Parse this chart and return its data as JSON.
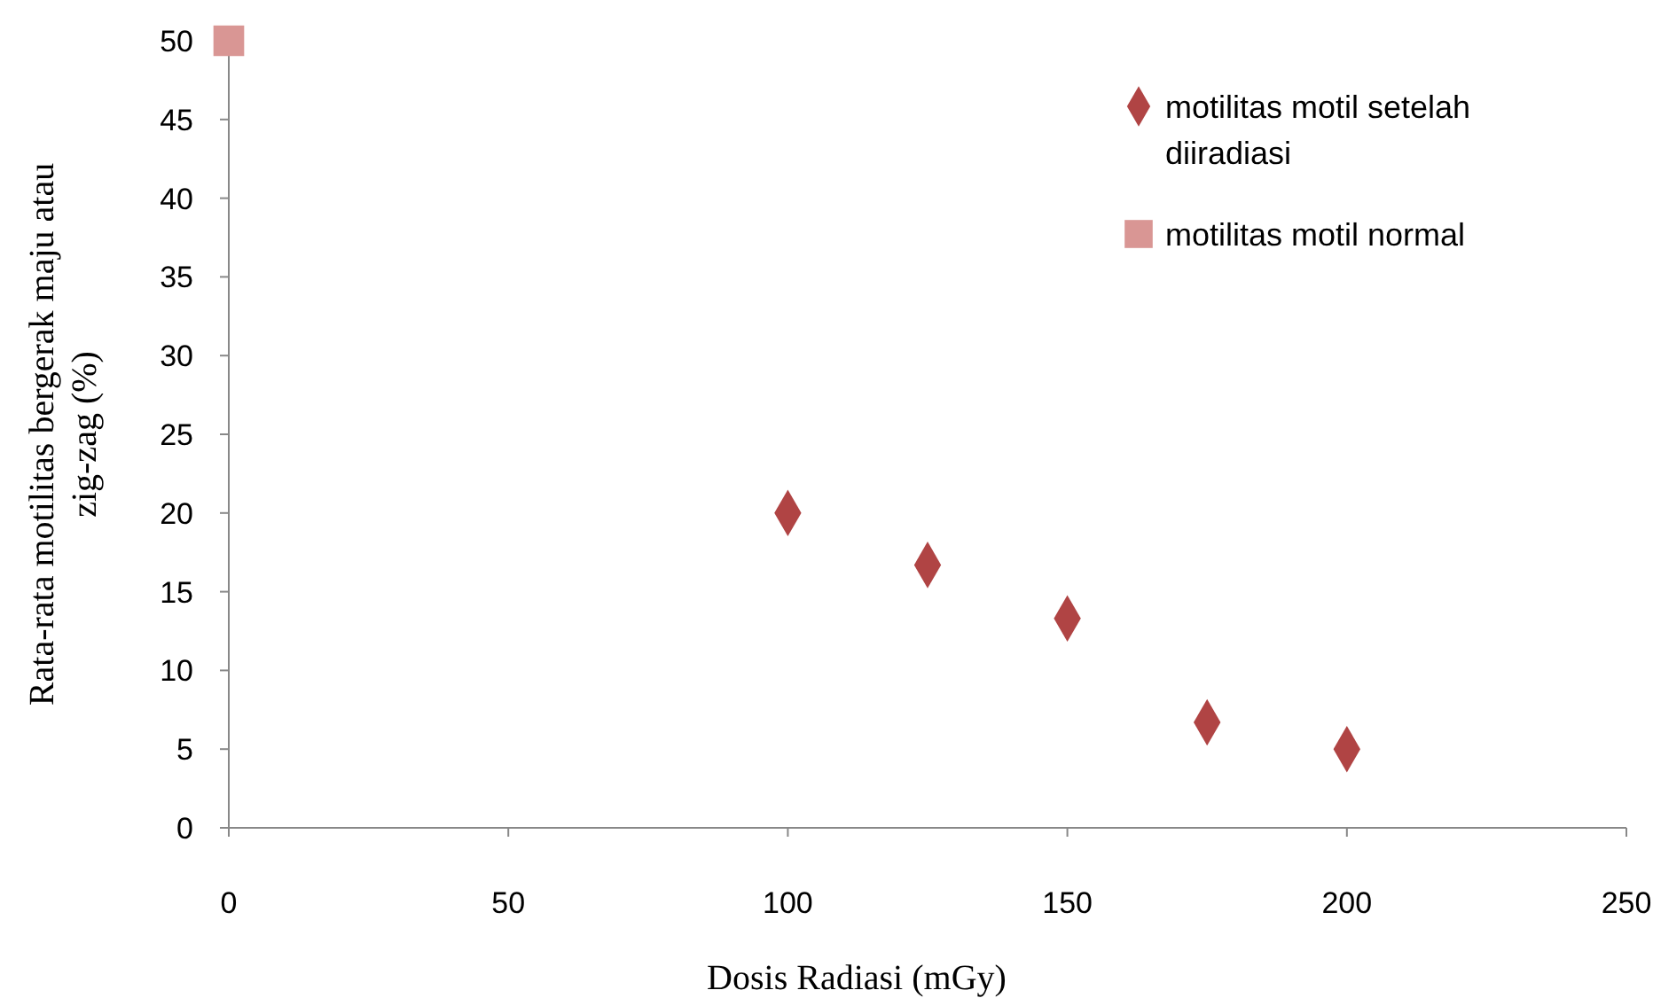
{
  "chart_data": {
    "type": "scatter",
    "xlabel": "Dosis Radiasi  (mGy)",
    "ylabel": "Rata-rata motilitas bergerak maju atau zig-zag (%)",
    "xlim": [
      0,
      250
    ],
    "xticks": [
      0,
      50,
      100,
      150,
      200,
      250
    ],
    "ylim": [
      0,
      50
    ],
    "yticks": [
      0,
      5,
      10,
      15,
      20,
      25,
      30,
      35,
      40,
      45,
      50
    ],
    "grid": false,
    "legend": "top right",
    "series": [
      {
        "name": "motilitas motil setelah diiradiasi",
        "color": "#b04444",
        "marker": "diamond",
        "x": [
          100,
          125,
          150,
          175,
          200
        ],
        "values": [
          20,
          16.7,
          13.3,
          6.7,
          5
        ]
      },
      {
        "name": "motilitas motil normal",
        "color": "#d99694",
        "marker": "square",
        "x": [
          0
        ],
        "values": [
          50
        ]
      }
    ]
  }
}
